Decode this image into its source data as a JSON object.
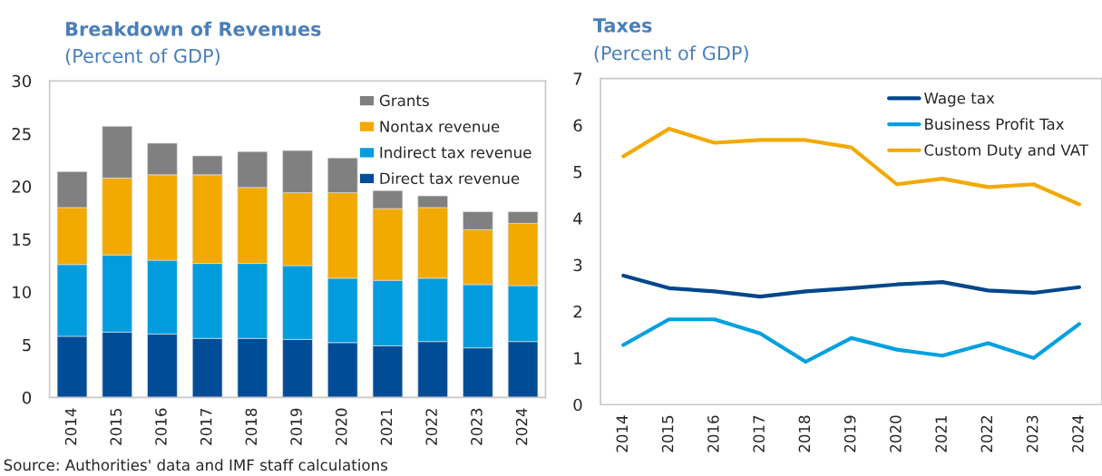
{
  "chart_data": [
    {
      "type": "bar",
      "title": "Breakdown of Revenues",
      "subtitle": "(Percent of GDP)",
      "stacked": true,
      "categories": [
        "2014",
        "2015",
        "2016",
        "2017",
        "2018",
        "2019",
        "2020",
        "2021",
        "2022",
        "2023",
        "2024"
      ],
      "series": [
        {
          "name": "Direct tax revenue",
          "color": "#004c97",
          "values": [
            5.8,
            6.2,
            6.0,
            5.6,
            5.6,
            5.5,
            5.2,
            4.9,
            5.3,
            4.7,
            5.3
          ]
        },
        {
          "name": "Indirect tax revenue",
          "color": "#009cde",
          "values": [
            6.8,
            7.3,
            7.0,
            7.1,
            7.1,
            7.0,
            6.1,
            6.2,
            6.0,
            6.0,
            5.3
          ]
        },
        {
          "name": "Nontax revenue",
          "color": "#f2a900",
          "values": [
            5.4,
            7.3,
            8.1,
            8.4,
            7.2,
            6.9,
            8.1,
            6.8,
            6.7,
            5.2,
            5.9
          ]
        },
        {
          "name": "Grants",
          "color": "#808080",
          "values": [
            3.4,
            4.9,
            3.0,
            1.8,
            3.4,
            4.0,
            3.3,
            1.7,
            1.1,
            1.7,
            1.1
          ]
        }
      ],
      "ylim": [
        0,
        30
      ],
      "yticks": [
        0,
        5,
        10,
        15,
        20,
        25,
        30
      ],
      "grid": false,
      "legend": "top right",
      "annotations": [
        "Source: Authorities' data and IMF staff calculations"
      ]
    },
    {
      "type": "line",
      "title": "Taxes",
      "subtitle": "(Percent of GDP)",
      "categories": [
        "2014",
        "2015",
        "2016",
        "2017",
        "2018",
        "2019",
        "2020",
        "2021",
        "2022",
        "2023",
        "2024"
      ],
      "series": [
        {
          "name": "Wage tax",
          "color": "#00468b",
          "values": [
            2.77,
            2.5,
            2.43,
            2.32,
            2.43,
            2.5,
            2.58,
            2.63,
            2.45,
            2.4,
            2.52
          ]
        },
        {
          "name": "Business Profit Tax",
          "color": "#00a0e0",
          "values": [
            1.28,
            1.83,
            1.83,
            1.53,
            0.92,
            1.43,
            1.18,
            1.05,
            1.32,
            1.0,
            1.73
          ]
        },
        {
          "name": "Custom Duty and VAT",
          "color": "#f2a900",
          "values": [
            5.33,
            5.92,
            5.62,
            5.68,
            5.68,
            5.52,
            4.73,
            4.85,
            4.67,
            4.73,
            4.3
          ]
        }
      ],
      "ylim": [
        0,
        7
      ],
      "yticks": [
        0,
        1,
        2,
        3,
        4,
        5,
        6,
        7
      ],
      "grid": false,
      "legend": "top right",
      "marker": "none",
      "line_style": "solid"
    }
  ]
}
